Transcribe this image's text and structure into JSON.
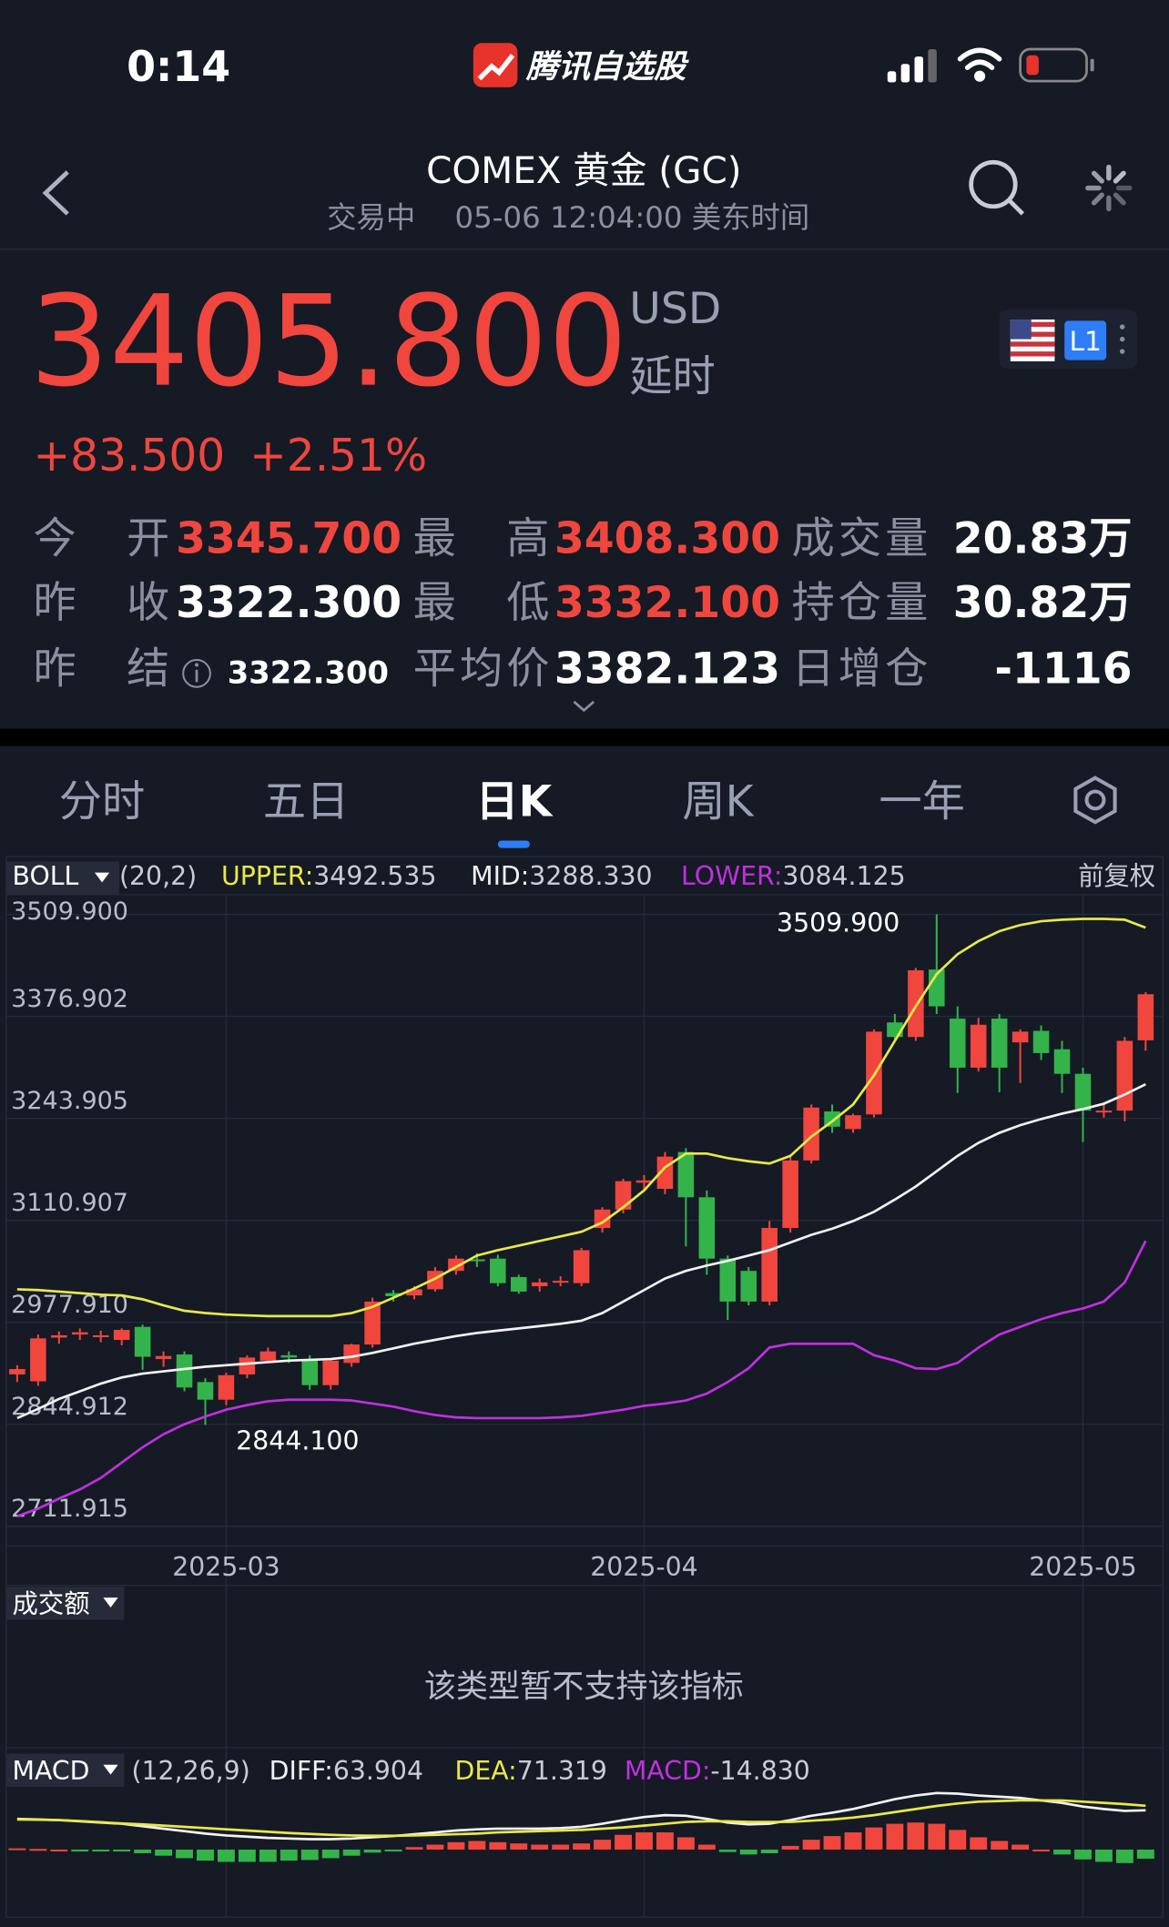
{
  "status_bar": {
    "time": "0:14",
    "app": "腾讯自选股"
  },
  "header": {
    "title": "COMEX 黄金 (GC)",
    "status": "交易中",
    "timestamp": "05-06 12:04:00 美东时间"
  },
  "quote": {
    "price": "3405.800",
    "currency": "USD",
    "delay": "延时",
    "change": "+83.500",
    "change_pct": "+2.51%",
    "level": "L1"
  },
  "stats": [
    [
      {
        "label": "今开",
        "value": "3345.700",
        "color": "#f0463e"
      },
      {
        "label": "最高",
        "value": "3408.300",
        "color": "#f0463e"
      },
      {
        "label": "成交量",
        "value": "20.83万",
        "color": "#ffffff"
      }
    ],
    [
      {
        "label": "昨收",
        "value": "3322.300",
        "color": "#ffffff"
      },
      {
        "label": "最低",
        "value": "3332.100",
        "color": "#f0463e"
      },
      {
        "label": "持仓量",
        "value": "30.82万",
        "color": "#ffffff"
      }
    ],
    [
      {
        "label": "昨结",
        "value": "3322.300",
        "color": "#ffffff"
      },
      {
        "label": "平均价",
        "value": "3382.123",
        "color": "#ffffff"
      },
      {
        "label": "日增仓",
        "value": "-1116",
        "color": "#ffffff"
      }
    ]
  ],
  "tabs": {
    "items": [
      "分时",
      "五日",
      "日K",
      "周K",
      "一年"
    ],
    "active": 2
  },
  "volume_panel": {
    "title": "成交额",
    "message": "该类型暂不支持该指标"
  },
  "chart_data": [
    {
      "type": "candlestick",
      "indicator": "BOLL",
      "params": "(20,2)",
      "adjust": "前复权",
      "up_color": "#f0463e",
      "down_color": "#33b34a",
      "categories": [
        null,
        null,
        null,
        null,
        null,
        null,
        null,
        null,
        null,
        null,
        "2025-03",
        null,
        null,
        null,
        null,
        null,
        null,
        null,
        null,
        null,
        null,
        null,
        null,
        null,
        null,
        null,
        null,
        null,
        null,
        null,
        "2025-04",
        null,
        null,
        null,
        null,
        null,
        null,
        null,
        null,
        null,
        null,
        null,
        null,
        null,
        null,
        null,
        null,
        null,
        null,
        null,
        null,
        "2025-05",
        null,
        null,
        null
      ],
      "open": [
        2910,
        2901,
        2958,
        2962,
        2960,
        2955,
        2972,
        2930,
        2936,
        2900,
        2877,
        2910,
        2928,
        2935,
        2930,
        2896,
        2925,
        2949,
        3016,
        3013,
        3021,
        3045,
        3060,
        3061,
        3037,
        3025,
        3030,
        3029,
        3101,
        3125,
        3160,
        3152,
        3200,
        3141,
        3061,
        3045,
        3005,
        3101,
        3189,
        3253,
        3230,
        3249,
        3369,
        3350,
        3438,
        3374,
        3310,
        3374,
        3343,
        3358,
        3334,
        3302,
        3252,
        3254,
        3345.7
      ],
      "high": [
        2922,
        2962,
        2966,
        2970,
        2967,
        2970,
        2975,
        2940,
        2940,
        2905,
        2912,
        2935,
        2945,
        2940,
        2935,
        2930,
        2950,
        3010,
        3020,
        3025,
        3050,
        3065,
        3068,
        3066,
        3040,
        3035,
        3038,
        3075,
        3128,
        3165,
        3170,
        3200,
        3205,
        3150,
        3065,
        3050,
        3110,
        3195,
        3262,
        3262,
        3250,
        3360,
        3380,
        3440,
        3509.9,
        3390,
        3375,
        3380,
        3360,
        3365,
        3345,
        3310,
        3262,
        3350,
        3408.3
      ],
      "low": [
        2900,
        2895,
        2950,
        2955,
        2952,
        2948,
        2916,
        2920,
        2888,
        2844.1,
        2870,
        2905,
        2925,
        2925,
        2890,
        2890,
        2920,
        2945,
        3005,
        3008,
        3018,
        3040,
        3050,
        3025,
        3015,
        3018,
        3025,
        3025,
        3095,
        3120,
        3150,
        3145,
        3077,
        3040,
        2981,
        3000,
        3000,
        3095,
        3185,
        3225,
        3225,
        3245,
        3345,
        3345,
        3380,
        3277,
        3305,
        3278,
        3290,
        3320,
        3277,
        3213,
        3245,
        3240,
        3332.1
      ],
      "close": [
        2917,
        2957,
        2961,
        2965,
        2961,
        2968,
        2933,
        2934,
        2893,
        2877,
        2909,
        2932,
        2940,
        2932,
        2896,
        2928,
        2949,
        3005,
        3012,
        3021,
        3045,
        3061,
        3058,
        3029,
        3018,
        3030,
        3032,
        3072,
        3125,
        3162,
        3163,
        3194,
        3141,
        3061,
        3005,
        3005,
        3101,
        3189,
        3258,
        3233,
        3248,
        3357,
        3350,
        3437,
        3390,
        3310,
        3366,
        3310,
        3357,
        3329,
        3302,
        3254,
        3254,
        3345,
        3405.8
      ],
      "lines": [
        {
          "label": "UPPER:",
          "value_label": "3492.535",
          "color": "#e8e84a",
          "values": [
            3021,
            3020,
            3018,
            3016,
            3014,
            3013,
            3008,
            3000,
            2993,
            2990,
            2988,
            2987,
            2986,
            2986,
            2986,
            2986,
            2990,
            2998,
            3010,
            3022,
            3035,
            3050,
            3065,
            3072,
            3078,
            3084,
            3090,
            3096,
            3108,
            3128,
            3150,
            3180,
            3198,
            3198,
            3192,
            3188,
            3185,
            3195,
            3220,
            3240,
            3262,
            3300,
            3345,
            3390,
            3432,
            3458,
            3475,
            3488,
            3496,
            3501,
            3503,
            3504,
            3504,
            3503,
            3492.535
          ]
        },
        {
          "label": "MID:",
          "value_label": "3288.330",
          "color": "#f2f2f2",
          "values": [
            2853,
            2865,
            2878,
            2888,
            2898,
            2906,
            2911,
            2914,
            2917,
            2920,
            2922,
            2924,
            2926,
            2928,
            2929,
            2930,
            2933,
            2938,
            2944,
            2950,
            2955,
            2960,
            2964,
            2967,
            2970,
            2973,
            2976,
            2980,
            2990,
            3005,
            3020,
            3035,
            3045,
            3052,
            3058,
            3065,
            3072,
            3082,
            3092,
            3100,
            3110,
            3122,
            3138,
            3155,
            3175,
            3195,
            3212,
            3225,
            3235,
            3243,
            3250,
            3256,
            3263,
            3275,
            3288.33
          ]
        },
        {
          "label": "LOWER:",
          "value_label": "3084.125",
          "color": "#c030e0",
          "values": [
            2725,
            2735,
            2748,
            2760,
            2775,
            2795,
            2815,
            2832,
            2845,
            2855,
            2864,
            2870,
            2875,
            2877,
            2877,
            2877,
            2876,
            2872,
            2868,
            2862,
            2857,
            2854,
            2853,
            2853,
            2853,
            2853,
            2854,
            2856,
            2860,
            2864,
            2869,
            2872,
            2876,
            2885,
            2900,
            2918,
            2945,
            2950,
            2950,
            2950,
            2950,
            2935,
            2928,
            2918,
            2917,
            2925,
            2945,
            2962,
            2972,
            2982,
            2990,
            2996,
            3005,
            3030,
            3084.125
          ]
        }
      ],
      "ylim": [
        2686.2,
        3535.6
      ],
      "yticks": [
        {
          "value": 3509.9,
          "label": "3509.900"
        },
        {
          "value": 3376.902,
          "label": "3376.902"
        },
        {
          "value": 3243.905,
          "label": "3243.905"
        },
        {
          "value": 3110.907,
          "label": "3110.907"
        },
        {
          "value": 2977.91,
          "label": "2977.910"
        },
        {
          "value": 2844.912,
          "label": "2844.912"
        },
        {
          "value": 2711.915,
          "label": "2711.915"
        }
      ],
      "grid": true,
      "high_label": "3509.900",
      "low_label": "2844.100"
    },
    {
      "type": "macd",
      "indicator": "MACD",
      "params": "(12,26,9)",
      "series": [
        {
          "label": "DIFF:",
          "value_label": "63.904",
          "color": "#f2f2f2",
          "values": [
            50,
            49,
            48,
            46,
            44,
            42,
            38,
            34,
            30,
            26,
            23,
            21,
            19,
            18,
            17,
            17,
            18,
            20,
            22,
            25,
            28,
            31,
            33,
            34,
            34,
            34,
            35,
            37,
            42,
            48,
            53,
            56,
            55,
            50,
            44,
            41,
            42,
            48,
            55,
            60,
            66,
            74,
            82,
            88,
            92,
            91,
            88,
            86,
            84,
            80,
            76,
            70,
            66,
            63,
            63.904
          ]
        },
        {
          "label": "DEA:",
          "value_label": "71.319",
          "color": "#e8e84a",
          "values": [
            49,
            48.5,
            48,
            46.5,
            44.5,
            42.5,
            41,
            39,
            37,
            35,
            33,
            31,
            29,
            27,
            25.5,
            24,
            23,
            22.5,
            22.5,
            23,
            24,
            25,
            26,
            28,
            29,
            30,
            31,
            32,
            34,
            36,
            39,
            42,
            45,
            46,
            46,
            45,
            45,
            45,
            47,
            49,
            52,
            56,
            61,
            66,
            71,
            75,
            78,
            79,
            80,
            80,
            80,
            78,
            76,
            74,
            71.319
          ]
        },
        {
          "label": "MACD:",
          "value_label": "-14.830",
          "color": "#c030e0",
          "values": [
            2,
            1,
            0,
            -1,
            -1,
            -1,
            -6,
            -10,
            -14,
            -18,
            -20,
            -20,
            -20,
            -18,
            -17,
            -14,
            -10,
            -5,
            -1,
            4,
            8,
            12,
            14,
            12,
            10,
            8,
            8,
            10,
            16,
            24,
            28,
            28,
            20,
            8,
            -4,
            -8,
            -6,
            6,
            16,
            22,
            28,
            36,
            42,
            44,
            42,
            32,
            20,
            14,
            8,
            0,
            -8,
            -16,
            -20,
            -22,
            -14.83
          ]
        }
      ]
    }
  ]
}
